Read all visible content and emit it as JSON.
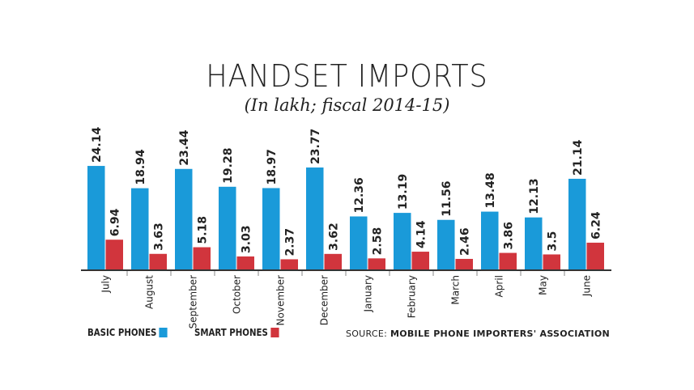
{
  "chart_data": {
    "type": "bar",
    "title": "HANDSET IMPORTS",
    "subtitle": "(In lakh; fiscal 2014-15)",
    "categories": [
      "July",
      "August",
      "September",
      "October",
      "November",
      "December",
      "January",
      "February",
      "March",
      "April",
      "May",
      "June"
    ],
    "series": [
      {
        "name": "BASIC PHONES",
        "color": "#1a9ad9",
        "values": [
          24.14,
          18.94,
          23.44,
          19.28,
          18.97,
          23.77,
          12.36,
          13.19,
          11.56,
          13.48,
          12.13,
          21.14
        ],
        "labels": [
          "24.14",
          "18.94",
          "23.44",
          "19.28",
          "18.97",
          "23.77",
          "12.36",
          "13.19",
          "11.56",
          "13.48",
          "12.13",
          "21.14"
        ]
      },
      {
        "name": "SMART PHONES",
        "color": "#d1353d",
        "values": [
          6.94,
          3.63,
          5.18,
          3.03,
          2.37,
          3.62,
          2.58,
          4.14,
          2.46,
          3.86,
          3.5,
          6.24
        ],
        "labels": [
          "6.94",
          "3.63",
          "5.18",
          "3.03",
          "2.37",
          "3.62",
          "2.58",
          "4.14",
          "2.46",
          "3.86",
          "3.5",
          "6.24"
        ]
      }
    ],
    "ylim": [
      0,
      25
    ],
    "grid": false,
    "legend": "bottom-left"
  },
  "source": {
    "label": "SOURCE:",
    "text": "MOBILE PHONE IMPORTERS' ASSOCIATION"
  }
}
